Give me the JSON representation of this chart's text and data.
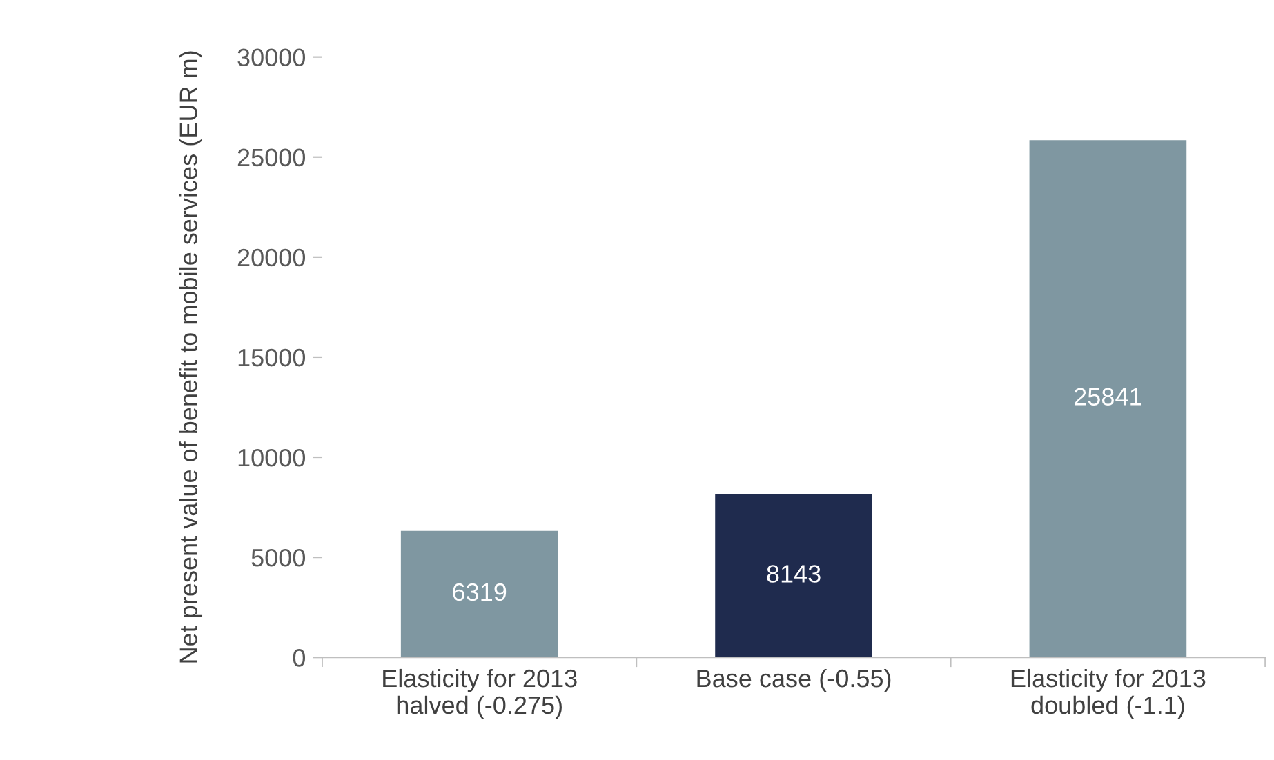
{
  "chart_data": {
    "type": "bar",
    "ylabel": "Net present value of benefit to mobile services (EUR m)",
    "categories": [
      "Elasticity for 2013 halved (-0.275)",
      "Base case (-0.55)",
      "Elasticity for 2013 doubled (-1.1)"
    ],
    "values": [
      6319,
      8143,
      25841
    ],
    "colors": [
      "#7f97a1",
      "#1f2b4e",
      "#7f97a1"
    ],
    "ylim": [
      0,
      30000
    ],
    "yticks": [
      0,
      5000,
      10000,
      15000,
      20000,
      25000,
      30000
    ],
    "data_labels": true,
    "grid": false,
    "legend": false
  }
}
